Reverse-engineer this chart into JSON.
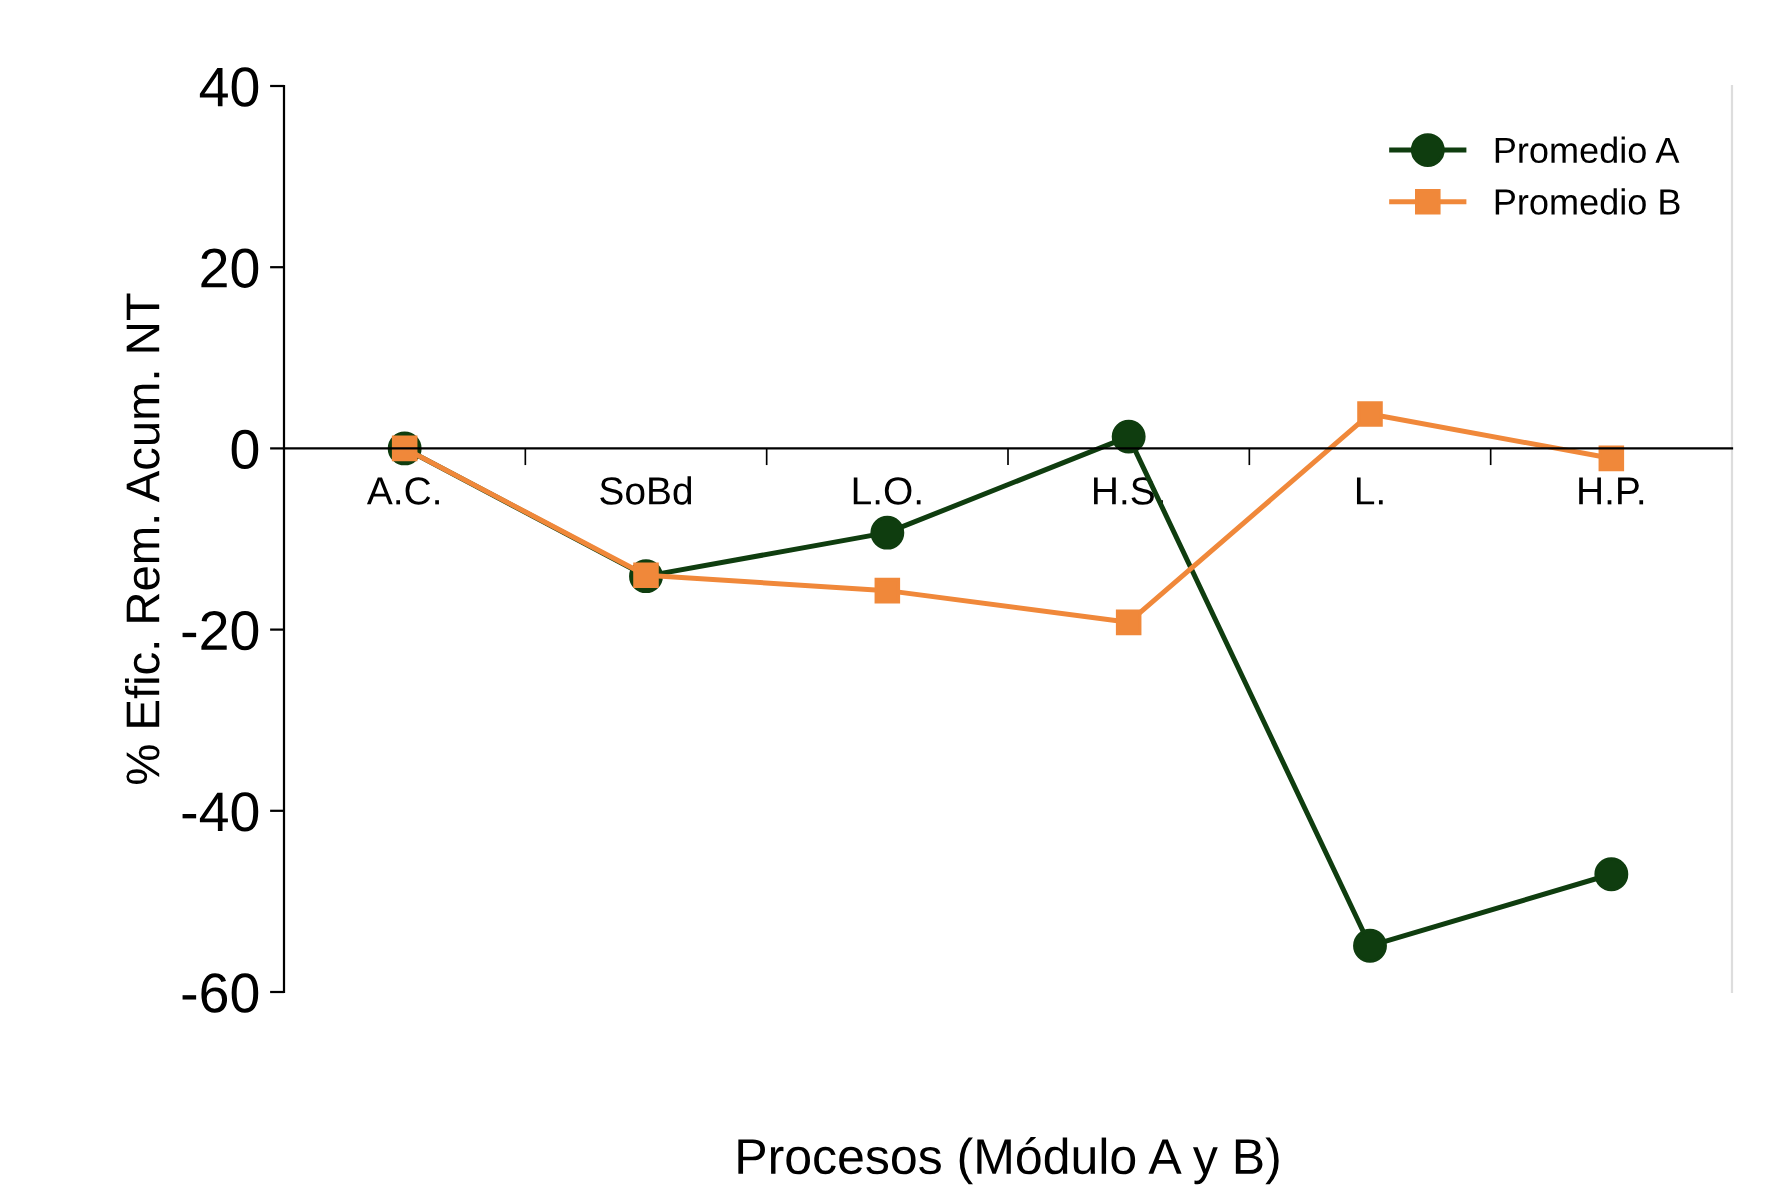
{
  "chart_data": {
    "type": "line",
    "xlabel": "Procesos (Módulo A y B)",
    "ylabel": "% Efic. Rem. Acum. NT",
    "categories": [
      "A.C.",
      "SoBd",
      "L.O.",
      "H.S.",
      "L.",
      "H.P."
    ],
    "series": [
      {
        "name": "Promedio A",
        "color": "#0f3d0f",
        "marker": "circle",
        "values": [
          0,
          -14.1,
          -9.3,
          1.3,
          -54.9,
          -47
        ]
      },
      {
        "name": "Promedio B",
        "color": "#f0883a",
        "marker": "square",
        "values": [
          0,
          -14,
          -15.7,
          -19.2,
          3.8,
          -1.1
        ]
      }
    ],
    "ylim": [
      -60,
      40
    ],
    "yticks": [
      -60,
      -40,
      -20,
      0,
      20,
      40
    ],
    "grid": false,
    "legend": "top right",
    "line_style": "solid"
  }
}
